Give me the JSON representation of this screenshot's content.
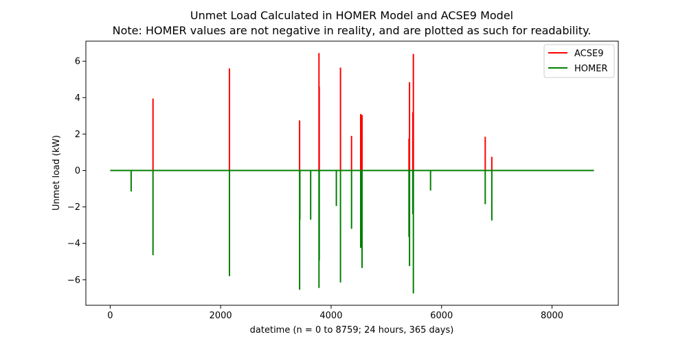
{
  "chart_data": {
    "type": "line",
    "title": "Unmet Load Calculated in HOMER Model and ACSE9 Model",
    "subtitle": "Note: HOMER values are not negative in reality, and are plotted as such for readability.",
    "xlabel": "datetime (n = 0 to 8759; 24 hours, 365 days)",
    "ylabel": "Unmet load (kW)",
    "xlim": [
      -440,
      9200
    ],
    "ylim": [
      -7.4,
      7.1
    ],
    "x_ticks": [
      0,
      2000,
      4000,
      6000,
      8000
    ],
    "y_ticks": [
      -6,
      -4,
      -2,
      0,
      2,
      4,
      6
    ],
    "x_tick_labels": [
      "0",
      "2000",
      "4000",
      "6000",
      "8000"
    ],
    "y_tick_labels": [
      "−6",
      "−4",
      "−2",
      "0",
      "2",
      "4",
      "6"
    ],
    "grid": false,
    "legend_position": "top-right",
    "baseline": {
      "x_start": 0,
      "x_end": 8759
    },
    "series": [
      {
        "name": "ACSE9",
        "color": "#ff0000",
        "spikes": [
          [
            775,
            3.95
          ],
          [
            2160,
            5.6
          ],
          [
            3430,
            2.75
          ],
          [
            3780,
            6.45
          ],
          [
            3785,
            4.6
          ],
          [
            4170,
            5.65
          ],
          [
            4370,
            1.9
          ],
          [
            4535,
            3.1
          ],
          [
            4560,
            3.05
          ],
          [
            5410,
            1.75
          ],
          [
            5420,
            4.85
          ],
          [
            5480,
            3.2
          ],
          [
            5490,
            6.4
          ],
          [
            6790,
            1.85
          ],
          [
            6910,
            0.75
          ]
        ]
      },
      {
        "name": "HOMER",
        "color": "#008000",
        "spikes": [
          [
            380,
            -1.15
          ],
          [
            775,
            -4.65
          ],
          [
            2160,
            -5.8
          ],
          [
            3430,
            -6.55
          ],
          [
            3435,
            -2.7
          ],
          [
            3630,
            -2.7
          ],
          [
            3780,
            -6.45
          ],
          [
            3785,
            -4.95
          ],
          [
            4095,
            -1.95
          ],
          [
            4170,
            -6.15
          ],
          [
            4370,
            -3.2
          ],
          [
            4535,
            -4.25
          ],
          [
            4560,
            -5.35
          ],
          [
            5410,
            -3.65
          ],
          [
            5420,
            -5.25
          ],
          [
            5480,
            -2.4
          ],
          [
            5490,
            -6.75
          ],
          [
            5800,
            -1.1
          ],
          [
            6790,
            -1.85
          ],
          [
            6910,
            -2.75
          ]
        ]
      }
    ]
  }
}
